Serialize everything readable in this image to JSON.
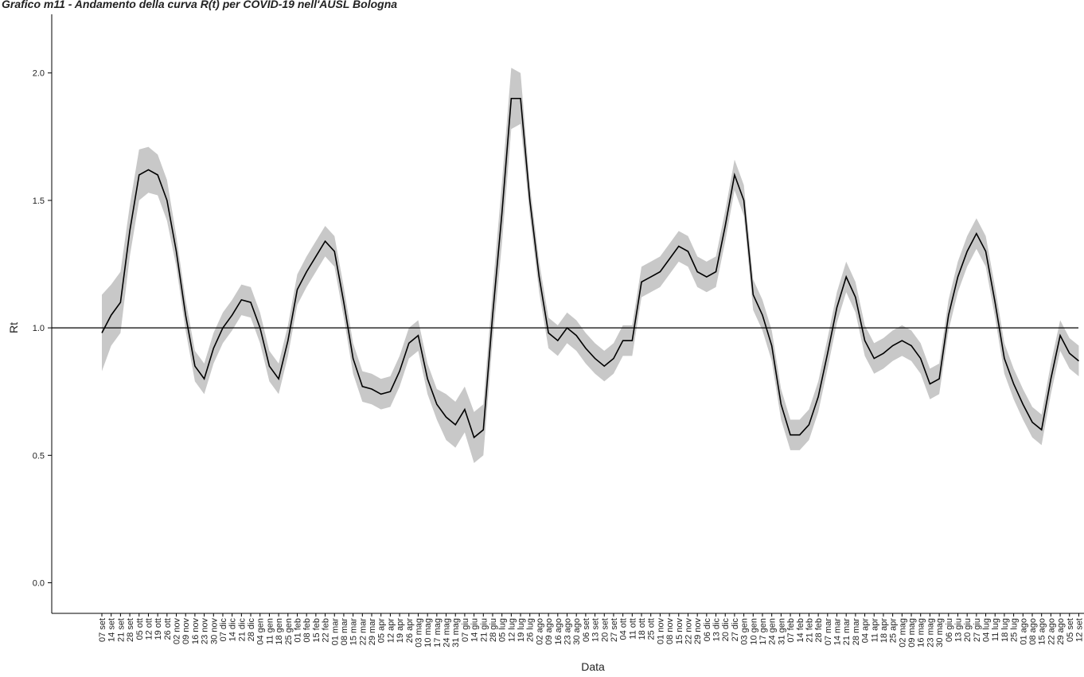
{
  "chart_data": {
    "type": "line",
    "title": "Grafico m11 - Andamento della curva R(t) per COVID-19 nell'AUSL Bologna",
    "xlabel": "Data",
    "ylabel": "Rt",
    "categories": [
      "07 set",
      "14 set",
      "21 set",
      "28 set",
      "05 ott",
      "12 ott",
      "19 ott",
      "26 ott",
      "02 nov",
      "09 nov",
      "16 nov",
      "23 nov",
      "30 nov",
      "07 dic",
      "14 dic",
      "21 dic",
      "28 dic",
      "04 gen",
      "11 gen",
      "18 gen",
      "25 gen",
      "01 feb",
      "08 feb",
      "15 feb",
      "22 feb",
      "01 mar",
      "08 mar",
      "15 mar",
      "22 mar",
      "29 mar",
      "05 apr",
      "12 apr",
      "19 apr",
      "26 apr",
      "03 mag",
      "10 mag",
      "17 mag",
      "24 mag",
      "31 mag",
      "07 giu",
      "14 giu",
      "21 giu",
      "28 giu",
      "05 lug",
      "12 lug",
      "19 lug",
      "26 lug",
      "02 ago",
      "09 ago",
      "16 ago",
      "23 ago",
      "30 ago",
      "06 set",
      "13 set",
      "20 set",
      "27 set",
      "04 ott",
      "11 ott",
      "18 ott",
      "25 ott",
      "01 nov",
      "08 nov",
      "15 nov",
      "22 nov",
      "29 nov",
      "06 dic",
      "13 dic",
      "20 dic",
      "27 dic",
      "03 gen",
      "10 gen",
      "17 gen",
      "24 gen",
      "31 gen",
      "07 feb",
      "14 feb",
      "21 feb",
      "28 feb",
      "07 mar",
      "14 mar",
      "21 mar",
      "28 mar",
      "04 apr",
      "11 apr",
      "18 apr",
      "25 apr",
      "02 mag",
      "09 mag",
      "16 mag",
      "23 mag",
      "30 mag",
      "06 giu",
      "13 giu",
      "20 giu",
      "27 giu",
      "04 lug",
      "11 lug",
      "18 lug",
      "25 lug",
      "01 ago",
      "08 ago",
      "15 ago",
      "22 ago",
      "29 ago",
      "05 set",
      "12 set"
    ],
    "values": [
      0.98,
      1.05,
      1.1,
      1.38,
      1.6,
      1.62,
      1.6,
      1.5,
      1.3,
      1.05,
      0.85,
      0.8,
      0.92,
      1.0,
      1.05,
      1.11,
      1.1,
      1.0,
      0.85,
      0.8,
      0.95,
      1.15,
      1.22,
      1.28,
      1.34,
      1.3,
      1.1,
      0.88,
      0.77,
      0.76,
      0.74,
      0.75,
      0.83,
      0.94,
      0.97,
      0.8,
      0.7,
      0.65,
      0.62,
      0.68,
      0.57,
      0.6,
      1.05,
      1.45,
      1.9,
      1.9,
      1.5,
      1.2,
      0.98,
      0.95,
      1.0,
      0.97,
      0.92,
      0.88,
      0.85,
      0.88,
      0.95,
      0.95,
      1.18,
      1.2,
      1.22,
      1.27,
      1.32,
      1.3,
      1.22,
      1.2,
      1.22,
      1.4,
      1.6,
      1.5,
      1.13,
      1.05,
      0.93,
      0.7,
      0.58,
      0.58,
      0.62,
      0.73,
      0.9,
      1.08,
      1.2,
      1.12,
      0.95,
      0.88,
      0.9,
      0.93,
      0.95,
      0.93,
      0.88,
      0.78,
      0.8,
      1.05,
      1.2,
      1.3,
      1.37,
      1.3,
      1.1,
      0.88,
      0.78,
      0.7,
      0.63,
      0.6,
      0.8,
      0.97,
      0.9,
      0.87
    ],
    "ci_halfwidth": [
      0.15,
      0.12,
      0.12,
      0.1,
      0.1,
      0.09,
      0.08,
      0.08,
      0.06,
      0.06,
      0.06,
      0.06,
      0.06,
      0.06,
      0.06,
      0.06,
      0.06,
      0.06,
      0.06,
      0.06,
      0.06,
      0.06,
      0.06,
      0.06,
      0.06,
      0.06,
      0.06,
      0.06,
      0.06,
      0.06,
      0.06,
      0.06,
      0.06,
      0.06,
      0.06,
      0.06,
      0.06,
      0.09,
      0.09,
      0.09,
      0.1,
      0.1,
      0.1,
      0.12,
      0.12,
      0.1,
      0.06,
      0.06,
      0.06,
      0.06,
      0.06,
      0.06,
      0.06,
      0.06,
      0.06,
      0.06,
      0.06,
      0.06,
      0.06,
      0.06,
      0.06,
      0.06,
      0.06,
      0.06,
      0.06,
      0.06,
      0.06,
      0.06,
      0.06,
      0.06,
      0.06,
      0.06,
      0.06,
      0.06,
      0.06,
      0.06,
      0.06,
      0.06,
      0.06,
      0.06,
      0.06,
      0.06,
      0.06,
      0.06,
      0.06,
      0.06,
      0.06,
      0.06,
      0.06,
      0.06,
      0.06,
      0.06,
      0.06,
      0.06,
      0.06,
      0.06,
      0.06,
      0.06,
      0.06,
      0.06,
      0.06,
      0.06,
      0.06,
      0.06,
      0.06,
      0.06
    ],
    "color": "#000000",
    "band_color": "#c8c8c8",
    "reference_line": 1,
    "ylim": [
      -0.12,
      2.23
    ],
    "yticks": [
      {
        "value": 0,
        "label": "0.0"
      },
      0.5,
      {
        "value": 1,
        "label": "1.0"
      },
      1.5,
      {
        "value": 2,
        "label": "2.0"
      }
    ]
  }
}
